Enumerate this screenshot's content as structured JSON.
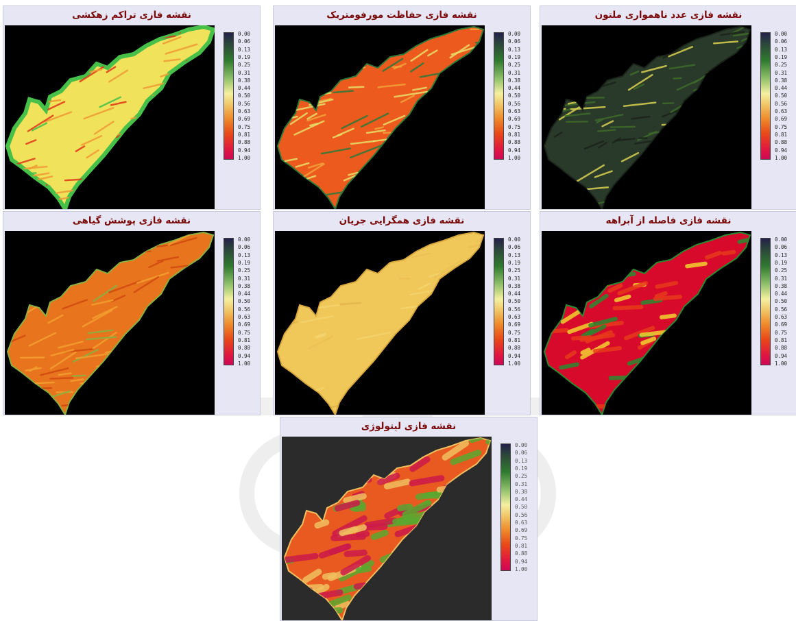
{
  "legend": {
    "ticks": [
      "0.00",
      "0.06",
      "0.13",
      "0.19",
      "0.25",
      "0.31",
      "0.38",
      "0.44",
      "0.50",
      "0.56",
      "0.63",
      "0.69",
      "0.75",
      "0.81",
      "0.88",
      "0.94",
      "1.00"
    ],
    "gradient_colors": [
      "#23204a",
      "#2c4c38",
      "#2f7a2f",
      "#8ec06a",
      "#f4f0a0",
      "#f0c060",
      "#ee8a2c",
      "#e84818",
      "#e01840",
      "#ce0856"
    ]
  },
  "panels": [
    {
      "id": "drainage",
      "title": "نقشه فازی تراکم زهکشی",
      "palette": {
        "base": "#f0e25a",
        "mid": "#ef9a35",
        "hot": "#e03818",
        "edge": "#47c04a"
      }
    },
    {
      "id": "morpho",
      "title": "نقشه فازی حفاظت مورفومتریک",
      "palette": {
        "base": "#ec5a1e",
        "mid": "#f2a33a",
        "hot": "#e8e06a",
        "edge": "#2e7a3a"
      }
    },
    {
      "id": "roughness",
      "title": "نقشه فازی عدد ناهمواری ملتون",
      "palette": {
        "base": "#2a3a2a",
        "mid": "#3e6a2a",
        "hot": "#d8d050",
        "edge": "#1a241a"
      }
    },
    {
      "id": "vegetation",
      "title": "نقشه فازی پوشش گیاهی",
      "palette": {
        "base": "#e8741e",
        "mid": "#f2a030",
        "hot": "#d04a10",
        "edge": "#8ab040"
      }
    },
    {
      "id": "flow",
      "title": "نقشه فازی همگرایی جریان",
      "palette": {
        "base": "#f0c85a",
        "mid": "#e8b850",
        "hot": "#f6dc7a",
        "edge": "#d8a840"
      }
    },
    {
      "id": "river",
      "title": "نقشه فازی فاصله از آبراهه",
      "palette": {
        "base": "#d80a2c",
        "mid": "#e83a1a",
        "hot": "#f2d030",
        "edge": "#2a8a30"
      }
    },
    {
      "id": "lithology",
      "title": "نقشه فازی لیتولوژی",
      "palette": {
        "base": "#e85a20",
        "mid": "#5aa830",
        "hot": "#cc1a4a",
        "edge": "#f0c060"
      }
    }
  ]
}
